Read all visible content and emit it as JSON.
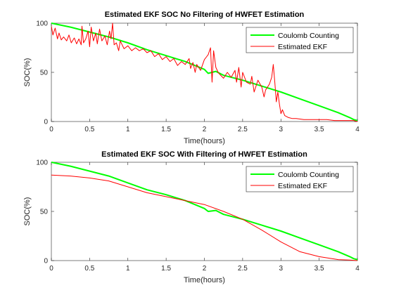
{
  "chart_data": [
    {
      "type": "line",
      "title": "Estimated EKF SOC No Filtering of HWFET Estimation",
      "xlabel": "Time(hours)",
      "ylabel": "SOC(%)",
      "xlim": [
        0,
        4
      ],
      "ylim": [
        0,
        100
      ],
      "xticks": [
        0,
        0.5,
        1,
        1.5,
        2,
        2.5,
        3,
        3.5,
        4
      ],
      "xtick_labels": [
        "0",
        "0.5",
        "1",
        "1.5",
        "2",
        "2.5",
        "3",
        "3.5",
        "4"
      ],
      "yticks": [
        0,
        50,
        100
      ],
      "ytick_labels": [
        "0",
        "50",
        "100"
      ],
      "grid": false,
      "legend_position": "top-right",
      "series": [
        {
          "name": "Coulomb Counting",
          "color": "#00ff00",
          "line_width": 2,
          "x": [
            0,
            0.25,
            0.5,
            0.75,
            1.0,
            1.25,
            1.5,
            1.75,
            2.0,
            2.05,
            2.15,
            2.25,
            2.5,
            2.75,
            3.0,
            3.25,
            3.5,
            3.75,
            3.9,
            3.95,
            4.0
          ],
          "y": [
            100,
            96,
            91,
            86,
            80,
            73,
            67,
            61,
            53,
            49,
            51,
            47,
            42,
            36,
            30,
            23,
            16,
            9,
            4,
            2,
            1
          ]
        },
        {
          "name": "Estimated EKF",
          "color": "#ff0000",
          "line_width": 1,
          "x": [
            0,
            0.02,
            0.05,
            0.08,
            0.1,
            0.13,
            0.16,
            0.2,
            0.23,
            0.26,
            0.3,
            0.33,
            0.36,
            0.39,
            0.4,
            0.42,
            0.45,
            0.48,
            0.5,
            0.52,
            0.55,
            0.58,
            0.6,
            0.63,
            0.66,
            0.7,
            0.73,
            0.76,
            0.78,
            0.8,
            0.82,
            0.85,
            0.88,
            0.9,
            0.95,
            1.0,
            1.05,
            1.1,
            1.15,
            1.2,
            1.25,
            1.3,
            1.35,
            1.4,
            1.45,
            1.5,
            1.55,
            1.6,
            1.65,
            1.7,
            1.75,
            1.8,
            1.82,
            1.85,
            1.88,
            1.9,
            1.95,
            2.0,
            2.02,
            2.05,
            2.08,
            2.1,
            2.12,
            2.15,
            2.18,
            2.2,
            2.25,
            2.3,
            2.35,
            2.4,
            2.42,
            2.45,
            2.48,
            2.5,
            2.55,
            2.6,
            2.62,
            2.65,
            2.7,
            2.75,
            2.78,
            2.8,
            2.85,
            2.88,
            2.9,
            2.92,
            2.94,
            2.96,
            2.98,
            3.0,
            3.02,
            3.05,
            3.1,
            3.15,
            3.2,
            3.3,
            3.4,
            3.5,
            3.6,
            3.7,
            3.8,
            3.9,
            3.95,
            4.0
          ],
          "y": [
            97,
            88,
            95,
            84,
            90,
            83,
            86,
            82,
            88,
            80,
            85,
            79,
            84,
            78,
            97,
            80,
            84,
            92,
            76,
            96,
            82,
            90,
            79,
            94,
            82,
            87,
            78,
            92,
            84,
            100,
            78,
            80,
            72,
            82,
            74,
            77,
            72,
            75,
            72,
            74,
            70,
            72,
            66,
            69,
            63,
            66,
            61,
            64,
            57,
            61,
            58,
            64,
            54,
            60,
            50,
            58,
            52,
            63,
            65,
            68,
            75,
            40,
            72,
            55,
            50,
            48,
            44,
            50,
            45,
            52,
            40,
            55,
            35,
            50,
            40,
            38,
            46,
            30,
            42,
            35,
            25,
            32,
            38,
            45,
            58,
            40,
            20,
            30,
            18,
            8,
            12,
            6,
            4,
            3,
            3,
            2,
            2,
            2,
            2,
            1,
            1,
            1,
            1,
            0
          ]
        }
      ]
    },
    {
      "type": "line",
      "title": "Estimated EKF SOC With Filtering of HWFET Estimation",
      "xlabel": "Time(hours)",
      "ylabel": "SOC(%)",
      "xlim": [
        0,
        4
      ],
      "ylim": [
        0,
        100
      ],
      "xticks": [
        0,
        0.5,
        1,
        1.5,
        2,
        2.5,
        3,
        3.5,
        4
      ],
      "xtick_labels": [
        "0",
        "0.5",
        "1",
        "1.5",
        "2",
        "2.5",
        "3",
        "3.5",
        "4"
      ],
      "yticks": [
        0,
        50,
        100
      ],
      "ytick_labels": [
        "0",
        "50",
        "100"
      ],
      "grid": false,
      "legend_position": "top-right",
      "series": [
        {
          "name": "Coulomb Counting",
          "color": "#00ff00",
          "line_width": 2,
          "x": [
            0,
            0.25,
            0.5,
            0.75,
            1.0,
            1.25,
            1.5,
            1.75,
            2.0,
            2.05,
            2.15,
            2.25,
            2.5,
            2.75,
            3.0,
            3.25,
            3.5,
            3.75,
            3.9,
            3.95,
            4.0
          ],
          "y": [
            100,
            96,
            91,
            86,
            79,
            72,
            67,
            61,
            53,
            50,
            51,
            47,
            42,
            36,
            30,
            23,
            16,
            9,
            4,
            2,
            1
          ]
        },
        {
          "name": "Estimated EKF",
          "color": "#ff0000",
          "line_width": 1,
          "x": [
            0,
            0.25,
            0.5,
            0.75,
            1.0,
            1.25,
            1.5,
            1.75,
            2.0,
            2.25,
            2.5,
            2.75,
            3.0,
            3.25,
            3.5,
            3.75,
            3.9,
            4.0
          ],
          "y": [
            87,
            86,
            84,
            81,
            75,
            69,
            65,
            61,
            57,
            50,
            42,
            31,
            19,
            9,
            4,
            1,
            0.5,
            0
          ]
        }
      ]
    }
  ]
}
